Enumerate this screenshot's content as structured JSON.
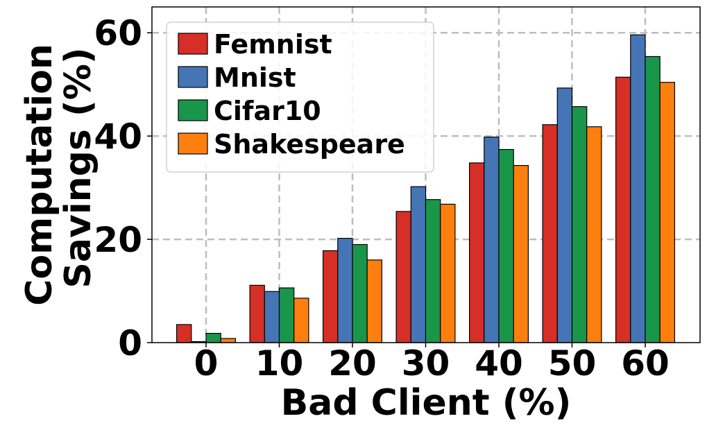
{
  "chart_data": {
    "type": "bar",
    "categories": [
      "0",
      "10",
      "20",
      "30",
      "40",
      "50",
      "60"
    ],
    "series": [
      {
        "name": "Femnist",
        "color": "#d62f27",
        "values": [
          3.5,
          11.1,
          17.8,
          25.4,
          34.8,
          42.2,
          51.4
        ]
      },
      {
        "name": "Mnist",
        "color": "#4575b4",
        "values": [
          0.2,
          9.9,
          20.2,
          30.2,
          39.8,
          49.3,
          59.6
        ]
      },
      {
        "name": "Cifar10",
        "color": "#1a964b",
        "values": [
          1.8,
          10.6,
          19.0,
          27.7,
          37.4,
          45.7,
          55.4
        ]
      },
      {
        "name": "Shakespeare",
        "color": "#fd7f0e",
        "values": [
          0.8,
          8.6,
          16.0,
          26.8,
          34.3,
          41.8,
          50.4
        ]
      }
    ],
    "title": "",
    "xlabel": "Bad Client (%)",
    "ylabel": [
      "Computation",
      "Savings (%)"
    ],
    "ylim": [
      0,
      65
    ],
    "yticks": [
      "0",
      "20",
      "40",
      "60"
    ],
    "ytick_values": [
      0,
      20,
      40,
      60
    ],
    "grid": true,
    "legend_position": "top-left"
  }
}
